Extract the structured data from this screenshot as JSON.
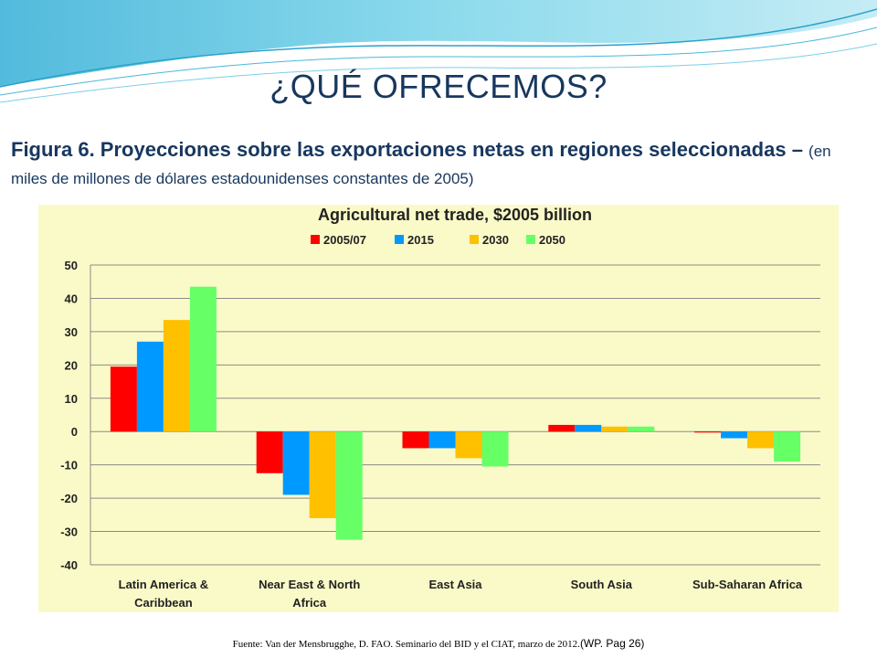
{
  "slide": {
    "title": "¿QUÉ OFRECEMOS?",
    "caption_main": "Figura 6. Proyecciones sobre las exportaciones netas en regiones seleccionadas – ",
    "caption_units": "(en miles de millones de dólares estadounidenses constantes de 2005)",
    "source": "Fuente: Van der Mensbrugghe, D. FAO. Seminario del BID y el CIAT, marzo de 2012.",
    "source_tail": "(WP.  Pag 26)"
  },
  "colors": {
    "accent": "#17375e",
    "chart_background": "#fafac8",
    "wave": "#5bc4e0"
  },
  "chart_data": {
    "type": "bar",
    "title": "Agricultural net trade, $2005 billion",
    "xlabel": "",
    "ylabel": "",
    "ylim": [
      -40,
      50
    ],
    "yticks": [
      50,
      40,
      30,
      20,
      10,
      0,
      -10,
      -20,
      -30,
      -40
    ],
    "grid": true,
    "legend_position": "top",
    "categories": [
      [
        "Latin America &",
        "Caribbean"
      ],
      [
        "Near East & North",
        "Africa"
      ],
      [
        "East Asia"
      ],
      [
        "South Asia"
      ],
      [
        "Sub-Saharan Africa"
      ]
    ],
    "series": [
      {
        "name": "2005/07",
        "color": "#ff0000",
        "values": [
          19.5,
          -12.5,
          -5,
          2,
          -0.3
        ]
      },
      {
        "name": "2015",
        "color": "#0099ff",
        "values": [
          27,
          -19,
          -5,
          2,
          -2
        ]
      },
      {
        "name": "2030",
        "color": "#ffc000",
        "values": [
          33.5,
          -26,
          -8,
          1.5,
          -5
        ]
      },
      {
        "name": "2050",
        "color": "#66ff66",
        "values": [
          43.5,
          -32.5,
          -10.5,
          1.5,
          -9
        ]
      }
    ]
  }
}
